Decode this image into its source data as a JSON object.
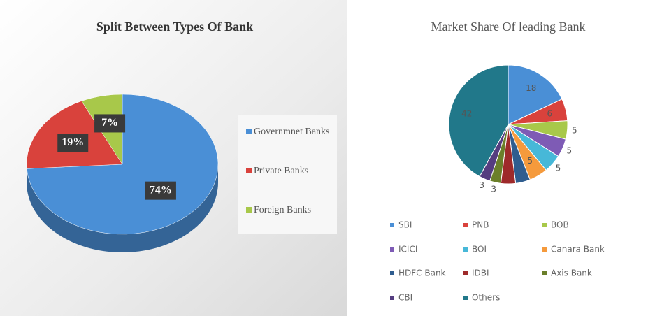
{
  "chart_data": [
    {
      "type": "pie3d",
      "title": "Split Between Types Of Bank",
      "categories": [
        "Governmnet Banks",
        "Private Banks",
        "Foreign Banks"
      ],
      "values": [
        74,
        19,
        7
      ],
      "value_labels": [
        "74%",
        "19%",
        "7%"
      ],
      "colors": [
        "#4a8fd6",
        "#d9423c",
        "#a8c84a"
      ],
      "legend": "right"
    },
    {
      "type": "pie",
      "title": "Market Share Of leading Bank",
      "categories": [
        "SBI",
        "PNB",
        "BOB",
        "ICICI",
        "BOI",
        "Canara Bank",
        "HDFC Bank",
        "IDBI",
        "Axis Bank",
        "CBI",
        "Others"
      ],
      "values": [
        18,
        6,
        5,
        5,
        5,
        5,
        4,
        4,
        3,
        3,
        42
      ],
      "value_labels": [
        "18",
        "6",
        "5",
        "5",
        "5",
        "5",
        null,
        null,
        "3",
        "3",
        "42"
      ],
      "colors": [
        "#4a8fd6",
        "#d9423c",
        "#a8c84a",
        "#7e5bb5",
        "#47b8d8",
        "#f59a3c",
        "#2f5d8f",
        "#9e2a2a",
        "#6b7f2a",
        "#553d80",
        "#21788a"
      ],
      "legend": "bottom"
    }
  ]
}
